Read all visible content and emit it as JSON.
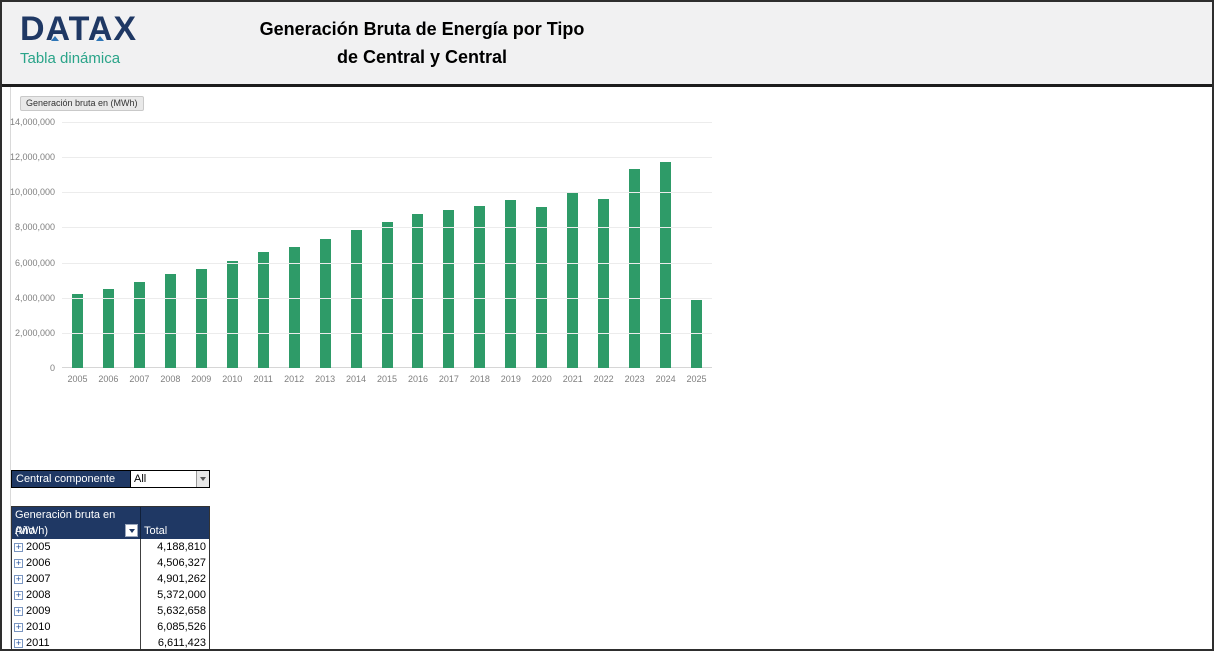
{
  "header": {
    "logo_text": "DATAX",
    "logo_subtitle": "Tabla dinámica",
    "title_line1": "Generación Bruta de Energía por Tipo",
    "title_line2": "de Central y Central"
  },
  "chart_data": {
    "type": "bar",
    "field_button_label": "Generación bruta en (MWh)",
    "categories": [
      "2005",
      "2006",
      "2007",
      "2008",
      "2009",
      "2010",
      "2011",
      "2012",
      "2013",
      "2014",
      "2015",
      "2016",
      "2017",
      "2018",
      "2019",
      "2020",
      "2021",
      "2022",
      "2023",
      "2024",
      "2025"
    ],
    "values": [
      4188810,
      4506327,
      4901262,
      5372000,
      5632658,
      6085526,
      6611423,
      6900000,
      7320000,
      7850000,
      8300000,
      8750000,
      9000000,
      9230000,
      9550000,
      9170000,
      10000000,
      9630000,
      11300000,
      11700000,
      3850000
    ],
    "ylim": [
      0,
      14000000
    ],
    "ytick_values": [
      0,
      2000000,
      4000000,
      6000000,
      8000000,
      10000000,
      12000000,
      14000000
    ],
    "ytick_labels": [
      "0",
      "2,000,000",
      "4,000,000",
      "6,000,000",
      "8,000,000",
      "10,000,000",
      "12,000,000",
      "14,000,000"
    ],
    "bar_color": "#2e9b68",
    "grid": true,
    "legend": "none"
  },
  "filter": {
    "label": "Central componente",
    "value": "All"
  },
  "pivot_table": {
    "title": "Generación bruta en (MWh)",
    "row_header": "Año",
    "value_header": "Total",
    "expand_icon": "+",
    "rows": [
      {
        "year": "2005",
        "total": "4,188,810"
      },
      {
        "year": "2006",
        "total": "4,506,327"
      },
      {
        "year": "2007",
        "total": "4,901,262"
      },
      {
        "year": "2008",
        "total": "5,372,000"
      },
      {
        "year": "2009",
        "total": "5,632,658"
      },
      {
        "year": "2010",
        "total": "6,085,526"
      },
      {
        "year": "2011",
        "total": "6,611,423"
      }
    ]
  },
  "colors": {
    "navy": "#1f3864",
    "teal": "#2aa489",
    "bar_green": "#2e9b68",
    "header_bg": "#f1f1f2",
    "logo_accent_blue": "#2e75b6"
  }
}
